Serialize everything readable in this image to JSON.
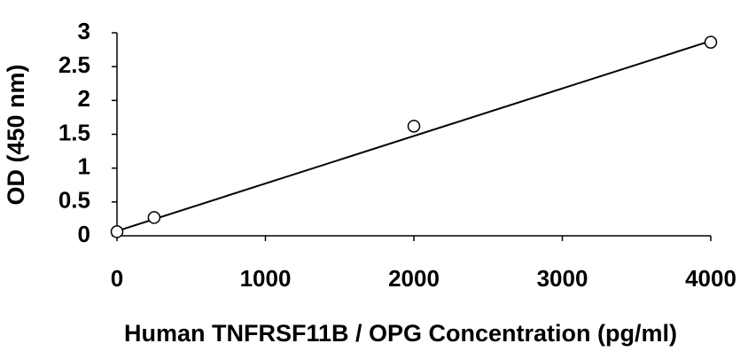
{
  "chart_data": {
    "type": "scatter",
    "x_label": "Human TNFRSF11B / OPG Concentration (pg/ml)",
    "y_label": "OD (450 nm)",
    "x": [
      0,
      250,
      2000,
      4000
    ],
    "values": [
      0.06,
      0.27,
      1.62,
      2.86
    ],
    "color": "#000000",
    "trendline": {
      "x": [
        0,
        4000
      ],
      "values": [
        0.07,
        2.88
      ]
    },
    "xlim": [
      0,
      4000
    ],
    "xticks": [
      0,
      1000,
      2000,
      3000,
      4000
    ],
    "ylim": [
      0,
      3
    ],
    "yticks": [
      0,
      0.5,
      1,
      1.5,
      2,
      2.5,
      3
    ],
    "grid": false
  }
}
